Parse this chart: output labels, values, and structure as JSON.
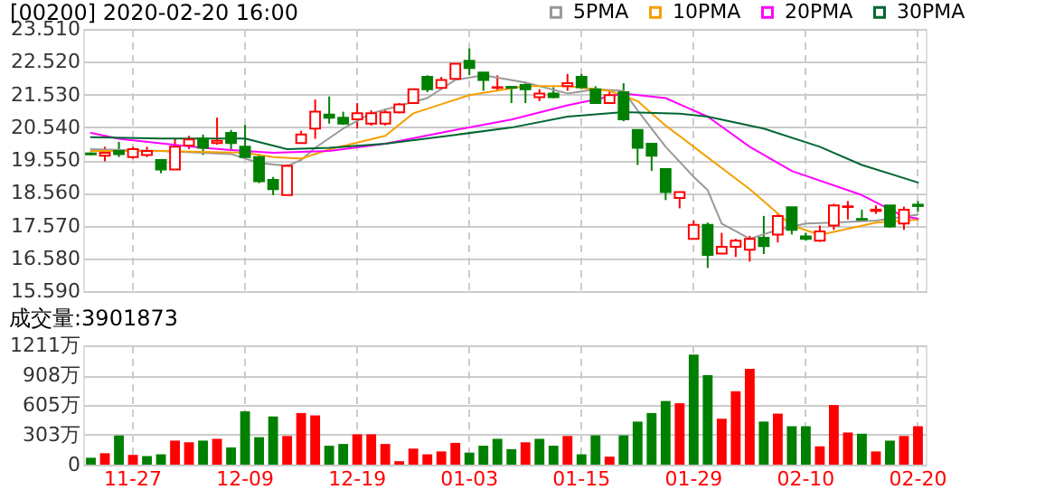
{
  "chart_data": [
    {
      "type": "candlestick",
      "title": "[00200] 2020-02-20 16:00",
      "categories": [
        null,
        null,
        null,
        null,
        null,
        null,
        null,
        null,
        null,
        null,
        null,
        null,
        null,
        null,
        null,
        null,
        null,
        null,
        null,
        null,
        null,
        null,
        null,
        null,
        null,
        null,
        null,
        null,
        null,
        null,
        null,
        null,
        null,
        null,
        null,
        null,
        null,
        null,
        null,
        null,
        null,
        null,
        null,
        null,
        null,
        null,
        null,
        null,
        null,
        null,
        null,
        null,
        null,
        null,
        null,
        null,
        null,
        null,
        null,
        null
      ],
      "ohlc": [
        [
          19.75,
          19.78,
          19.7,
          19.72
        ],
        [
          19.68,
          19.95,
          19.51,
          19.77
        ],
        [
          19.82,
          20.1,
          19.64,
          19.73
        ],
        [
          19.64,
          19.95,
          19.59,
          19.88
        ],
        [
          19.7,
          19.95,
          19.64,
          19.82
        ],
        [
          19.55,
          19.55,
          19.15,
          19.26
        ],
        [
          19.26,
          20.19,
          19.26,
          19.95
        ],
        [
          19.99,
          20.28,
          19.88,
          20.17
        ],
        [
          20.19,
          20.32,
          19.7,
          19.92
        ],
        [
          20.06,
          20.83,
          20.01,
          20.13
        ],
        [
          20.37,
          20.46,
          19.88,
          20.06
        ],
        [
          19.95,
          20.61,
          19.64,
          19.64
        ],
        [
          19.64,
          19.73,
          18.85,
          18.91
        ],
        [
          18.95,
          19.04,
          18.49,
          18.67
        ],
        [
          18.49,
          19.42,
          18.49,
          19.37
        ],
        [
          20.06,
          20.43,
          20.06,
          20.32
        ],
        [
          20.5,
          21.38,
          20.19,
          21.01
        ],
        [
          20.92,
          21.47,
          20.65,
          20.83
        ],
        [
          20.83,
          21.01,
          20.61,
          20.65
        ],
        [
          20.78,
          21.27,
          20.5,
          20.96
        ],
        [
          20.65,
          21.05,
          20.59,
          20.96
        ],
        [
          20.65,
          21.09,
          20.59,
          20.99
        ],
        [
          20.99,
          21.27,
          20.96,
          21.23
        ],
        [
          21.27,
          21.71,
          21.27,
          21.69
        ],
        [
          22.06,
          22.11,
          21.6,
          21.69
        ],
        [
          21.73,
          22.06,
          21.69,
          21.97
        ],
        [
          22.0,
          22.46,
          21.97,
          22.46
        ],
        [
          22.55,
          22.92,
          22.11,
          22.33
        ],
        [
          22.19,
          22.19,
          21.64,
          21.97
        ],
        [
          21.73,
          22.11,
          21.64,
          21.75
        ],
        [
          21.76,
          21.78,
          21.27,
          21.73
        ],
        [
          21.82,
          21.87,
          21.27,
          21.69
        ],
        [
          21.45,
          21.69,
          21.33,
          21.56
        ],
        [
          21.56,
          21.75,
          21.42,
          21.45
        ],
        [
          21.78,
          22.15,
          21.64,
          21.87
        ],
        [
          22.06,
          22.15,
          21.69,
          21.75
        ],
        [
          21.69,
          21.78,
          21.27,
          21.27
        ],
        [
          21.27,
          21.64,
          21.27,
          21.51
        ],
        [
          21.6,
          21.87,
          20.72,
          20.78
        ],
        [
          20.46,
          20.46,
          19.4,
          19.92
        ],
        [
          20.04,
          20.04,
          19.22,
          19.68
        ],
        [
          19.28,
          19.28,
          18.34,
          18.58
        ],
        [
          18.4,
          18.58,
          18.09,
          18.58
        ],
        [
          17.17,
          17.72,
          17.17,
          17.59
        ],
        [
          17.59,
          17.66,
          16.29,
          16.68
        ],
        [
          16.72,
          17.35,
          16.72,
          16.93
        ],
        [
          16.93,
          17.17,
          16.62,
          17.11
        ],
        [
          16.84,
          17.26,
          16.48,
          17.17
        ],
        [
          17.2,
          17.86,
          16.71,
          16.95
        ],
        [
          17.3,
          17.94,
          17.06,
          17.86
        ],
        [
          18.12,
          18.12,
          17.3,
          17.44
        ],
        [
          17.24,
          17.35,
          17.11,
          17.17
        ],
        [
          17.11,
          17.57,
          17.08,
          17.39
        ],
        [
          17.57,
          18.23,
          17.44,
          18.18
        ],
        [
          18.13,
          18.31,
          17.75,
          18.15
        ],
        [
          17.77,
          18.05,
          17.75,
          17.75
        ],
        [
          18.01,
          18.18,
          17.92,
          18.05
        ],
        [
          18.18,
          18.18,
          17.5,
          17.54
        ],
        [
          17.63,
          18.14,
          17.44,
          18.05
        ],
        [
          18.2,
          18.31,
          17.99,
          18.16
        ]
      ],
      "colors": [
        "#008000",
        "#ff0000",
        "#008000",
        "#ff0000",
        "#ff0000",
        "#008000",
        "#ff0000",
        "#ff0000",
        "#008000",
        "#ff0000",
        "#008000",
        "#008000",
        "#008000",
        "#008000",
        "#ff0000",
        "#ff0000",
        "#ff0000",
        "#008000",
        "#008000",
        "#ff0000",
        "#ff0000",
        "#ff0000",
        "#ff0000",
        "#ff0000",
        "#008000",
        "#ff0000",
        "#ff0000",
        "#008000",
        "#008000",
        "#ff0000",
        "#008000",
        "#008000",
        "#ff0000",
        "#008000",
        "#ff0000",
        "#008000",
        "#008000",
        "#ff0000",
        "#008000",
        "#008000",
        "#008000",
        "#008000",
        "#ff0000",
        "#ff0000",
        "#008000",
        "#ff0000",
        "#ff0000",
        "#ff0000",
        "#008000",
        "#ff0000",
        "#008000",
        "#008000",
        "#ff0000",
        "#ff0000",
        "#ff0000",
        "#008000",
        "#ff0000",
        "#008000",
        "#ff0000",
        "#008000"
      ],
      "series": [
        {
          "name": "5PMA",
          "type": "line",
          "color": "#999999",
          "values": [
            19.88,
            null,
            null,
            null,
            null,
            19.82,
            null,
            null,
            null,
            null,
            19.73,
            null,
            19.46,
            null,
            19.37,
            19.55,
            19.92,
            null,
            20.5,
            null,
            20.96,
            null,
            null,
            null,
            21.42,
            null,
            21.97,
            null,
            22.11,
            null,
            null,
            21.89,
            null,
            null,
            21.56,
            null,
            21.69,
            null,
            21.64,
            21.05,
            null,
            19.95,
            null,
            19.04,
            18.64,
            17.63,
            null,
            17.17,
            null,
            17.44,
            null,
            17.63,
            null,
            17.66,
            null,
            null,
            17.72,
            null,
            null,
            17.9
          ]
        },
        {
          "name": "10PMA",
          "type": "line",
          "color": "#f5a000",
          "values": [
            19.82,
            null,
            null,
            null,
            null,
            19.82,
            null,
            null,
            null,
            null,
            null,
            19.77,
            null,
            19.64,
            null,
            19.59,
            null,
            19.87,
            null,
            null,
            null,
            20.28,
            null,
            20.96,
            null,
            null,
            null,
            21.51,
            null,
            null,
            null,
            21.78,
            null,
            null,
            21.78,
            null,
            null,
            21.64,
            null,
            21.33,
            null,
            20.59,
            null,
            19.95,
            null,
            null,
            null,
            18.67,
            null,
            null,
            17.57,
            null,
            17.29,
            17.38,
            null,
            null,
            17.66,
            null,
            null,
            17.75
          ]
        },
        {
          "name": "20PMA",
          "type": "line",
          "color": "#ff00ff",
          "values": [
            20.37,
            null,
            20.19,
            null,
            null,
            null,
            20.01,
            null,
            19.92,
            null,
            null,
            19.82,
            null,
            19.77,
            null,
            null,
            null,
            19.82,
            null,
            null,
            null,
            20.04,
            null,
            null,
            null,
            null,
            20.46,
            null,
            null,
            null,
            20.77,
            null,
            null,
            null,
            21.2,
            null,
            null,
            null,
            21.56,
            null,
            null,
            21.42,
            null,
            null,
            20.86,
            null,
            null,
            19.95,
            null,
            null,
            19.22,
            null,
            null,
            null,
            null,
            18.49,
            null,
            null,
            17.84,
            17.78
          ]
        },
        {
          "name": "30PMA",
          "type": "line",
          "color": "#006633",
          "values": [
            20.24,
            null,
            null,
            null,
            null,
            20.2,
            null,
            null,
            null,
            null,
            null,
            20.2,
            null,
            null,
            19.88,
            null,
            null,
            19.92,
            null,
            null,
            null,
            20.04,
            null,
            null,
            null,
            null,
            20.31,
            null,
            null,
            null,
            20.53,
            null,
            null,
            null,
            20.86,
            null,
            null,
            null,
            21.0,
            null,
            null,
            null,
            20.95,
            null,
            20.86,
            null,
            null,
            null,
            20.5,
            null,
            null,
            null,
            19.95,
            null,
            null,
            19.4,
            null,
            null,
            null,
            18.87
          ]
        }
      ],
      "ylim": [
        15.59,
        23.51
      ],
      "yticks": [
        {
          "value": 15.59,
          "label": "15.590"
        },
        {
          "value": 16.58,
          "label": "16.580"
        },
        {
          "value": 17.57,
          "label": "17.570"
        },
        {
          "value": 18.56,
          "label": "18.560"
        },
        {
          "value": 19.55,
          "label": "19.550"
        },
        {
          "value": 20.54,
          "label": "20.540"
        },
        {
          "value": 21.53,
          "label": "21.530"
        },
        {
          "value": 22.52,
          "label": "22.520"
        },
        {
          "value": 23.51,
          "label": "23.510"
        }
      ],
      "grid": true,
      "legend": "top right",
      "tick_labels": "y"
    },
    {
      "type": "bar",
      "title": "成交量:3901873",
      "categories": [
        null,
        null,
        null,
        "11-27",
        null,
        null,
        null,
        null,
        null,
        null,
        null,
        "12-09",
        null,
        null,
        null,
        null,
        null,
        null,
        null,
        "12-19",
        null,
        null,
        null,
        null,
        null,
        null,
        null,
        "01-03",
        null,
        null,
        null,
        null,
        null,
        null,
        null,
        "01-15",
        null,
        null,
        null,
        null,
        null,
        null,
        null,
        "01-29",
        null,
        null,
        null,
        null,
        null,
        null,
        null,
        "02-10",
        null,
        null,
        null,
        null,
        null,
        null,
        null,
        "02-20"
      ],
      "values": [
        70,
        116,
        297,
        99,
        87,
        105,
        244,
        227,
        244,
        262,
        175,
        541,
        279,
        489,
        291,
        524,
        500,
        192,
        210,
        308,
        308,
        210,
        35,
        163,
        105,
        134,
        221,
        122,
        192,
        262,
        157,
        227,
        262,
        192,
        291,
        105,
        297,
        81,
        297,
        437,
        524,
        646,
        623,
        1117,
        908,
        466,
        745,
        972,
        437,
        518,
        390,
        390,
        186,
        605,
        326,
        314,
        134,
        244,
        291,
        390
      ],
      "colors": [
        "#008000",
        "#ff0000",
        "#008000",
        "#ff0000",
        "#008000",
        "#008000",
        "#ff0000",
        "#ff0000",
        "#008000",
        "#ff0000",
        "#008000",
        "#008000",
        "#008000",
        "#008000",
        "#ff0000",
        "#ff0000",
        "#ff0000",
        "#008000",
        "#008000",
        "#ff0000",
        "#ff0000",
        "#ff0000",
        "#ff0000",
        "#ff0000",
        "#ff0000",
        "#ff0000",
        "#ff0000",
        "#008000",
        "#008000",
        "#008000",
        "#008000",
        "#ff0000",
        "#008000",
        "#008000",
        "#ff0000",
        "#008000",
        "#008000",
        "#ff0000",
        "#008000",
        "#008000",
        "#008000",
        "#008000",
        "#ff0000",
        "#008000",
        "#008000",
        "#ff0000",
        "#ff0000",
        "#ff0000",
        "#008000",
        "#ff0000",
        "#008000",
        "#008000",
        "#ff0000",
        "#ff0000",
        "#ff0000",
        "#008000",
        "#ff0000",
        "#008000",
        "#ff0000",
        "#ff0000"
      ],
      "ylim": [
        0,
        1211
      ],
      "yticks": [
        0,
        {
          "value": 303,
          "label": "303万"
        },
        {
          "value": 605,
          "label": "605万"
        },
        {
          "value": 908,
          "label": "908万"
        },
        {
          "value": 1211,
          "label": "1211万"
        }
      ],
      "grid": true
    }
  ]
}
